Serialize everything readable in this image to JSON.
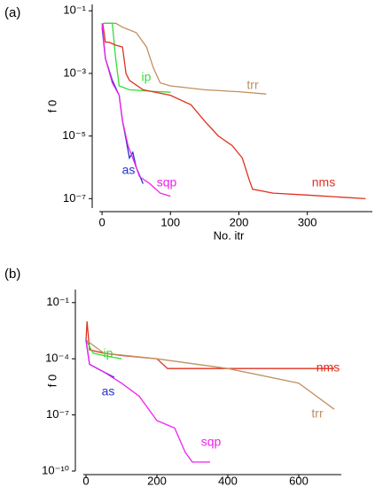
{
  "chart_data": [
    {
      "type": "line",
      "label": "(a)",
      "y_label": "f 0",
      "x_label": "No. itr",
      "log_y": true,
      "xlim": [
        -4,
        395
      ],
      "ylim": [
        5e-08,
        0.16
      ],
      "xticks": [
        0,
        100,
        200,
        300
      ],
      "yticks": [
        {
          "value": 0.1,
          "label": "10⁻¹"
        },
        {
          "value": 0.001,
          "label": "10⁻³"
        },
        {
          "value": 1e-05,
          "label": "10⁻⁵"
        },
        {
          "value": 1e-07,
          "label": "10⁻⁷"
        }
      ],
      "series": [
        {
          "name": "trr",
          "color": "#c09060",
          "x": [
            2,
            20,
            30,
            50,
            65,
            75,
            85,
            100,
            150,
            200,
            240
          ],
          "values": [
            0.04,
            0.04,
            0.03,
            0.02,
            0.007,
            0.0015,
            0.0005,
            0.0004,
            0.0003,
            0.00026,
            0.00022
          ]
        },
        {
          "name": "ip",
          "color": "#33dd33",
          "x": [
            2,
            15,
            20,
            25,
            40,
            70,
            100
          ],
          "values": [
            0.04,
            0.04,
            0.003,
            0.0004,
            0.0003,
            0.00027,
            0.00025
          ]
        },
        {
          "name": "nms",
          "color": "#e03020",
          "x": [
            1,
            5,
            10,
            20,
            30,
            35,
            40,
            60,
            100,
            130,
            150,
            170,
            190,
            205,
            215,
            220,
            250,
            300,
            385
          ],
          "values": [
            0.04,
            0.01,
            0.01,
            0.008,
            0.007,
            0.001,
            0.0006,
            0.0003,
            0.0002,
            0.0001,
            3e-05,
            1e-05,
            5e-06,
            2e-06,
            4e-07,
            2e-07,
            1.5e-07,
            1.3e-07,
            1e-07
          ]
        },
        {
          "name": "as",
          "color": "#2233cc",
          "x": [
            0,
            5,
            15,
            25,
            30,
            35,
            40,
            45,
            50,
            60
          ],
          "values": [
            0.03,
            0.003,
            0.0006,
            0.0002,
            3e-05,
            8e-06,
            2e-06,
            3e-06,
            1e-06,
            3e-07
          ]
        },
        {
          "name": "sqp",
          "color": "#ee22ee",
          "x": [
            0,
            5,
            15,
            25,
            30,
            38,
            45,
            55,
            70,
            85,
            100
          ],
          "values": [
            0.04,
            0.003,
            0.0005,
            0.0002,
            3e-05,
            5e-06,
            2e-06,
            5e-07,
            3e-07,
            1.5e-07,
            1.2e-07
          ]
        }
      ]
    },
    {
      "type": "line",
      "label": "(b)",
      "y_label": "f 0",
      "log_y": true,
      "xlim": [
        -10,
        720
      ],
      "ylim": [
        1e-10,
        0.5
      ],
      "xticks": [
        0,
        200,
        400,
        600
      ],
      "yticks": [
        {
          "value": 0.1,
          "label": "10⁻¹"
        },
        {
          "value": 0.0001,
          "label": "10⁻⁴"
        },
        {
          "value": 1e-07,
          "label": "10⁻⁷"
        },
        {
          "value": 1e-10,
          "label": "10⁻¹⁰"
        }
      ],
      "series": [
        {
          "name": "nms",
          "color": "#e03020",
          "x": [
            0,
            3,
            10,
            50,
            100,
            200,
            230,
            700
          ],
          "values": [
            0.001,
            0.01,
            0.0003,
            0.0002,
            0.00015,
            0.0001,
            3e-05,
            3e-05
          ]
        },
        {
          "name": "trr",
          "color": "#c09060",
          "x": [
            0,
            50,
            200,
            400,
            600,
            700
          ],
          "values": [
            0.001,
            0.0002,
            0.0001,
            3e-05,
            5e-06,
            2e-07
          ]
        },
        {
          "name": "ip",
          "color": "#33dd33",
          "x": [
            0,
            20,
            50,
            100
          ],
          "values": [
            0.001,
            0.0002,
            0.00015,
            0.0001
          ]
        },
        {
          "name": "as",
          "color": "#2233cc",
          "x": [
            0,
            10,
            50,
            80
          ],
          "values": [
            0.001,
            5e-05,
            2e-05,
            1e-05
          ]
        },
        {
          "name": "sqp",
          "color": "#ee22ee",
          "x": [
            0,
            10,
            50,
            100,
            150,
            200,
            250,
            280,
            300,
            350
          ],
          "values": [
            0.001,
            5e-05,
            2e-05,
            5e-06,
            1e-06,
            5e-08,
            2e-08,
            1e-09,
            3e-10,
            3e-10
          ]
        }
      ]
    }
  ]
}
